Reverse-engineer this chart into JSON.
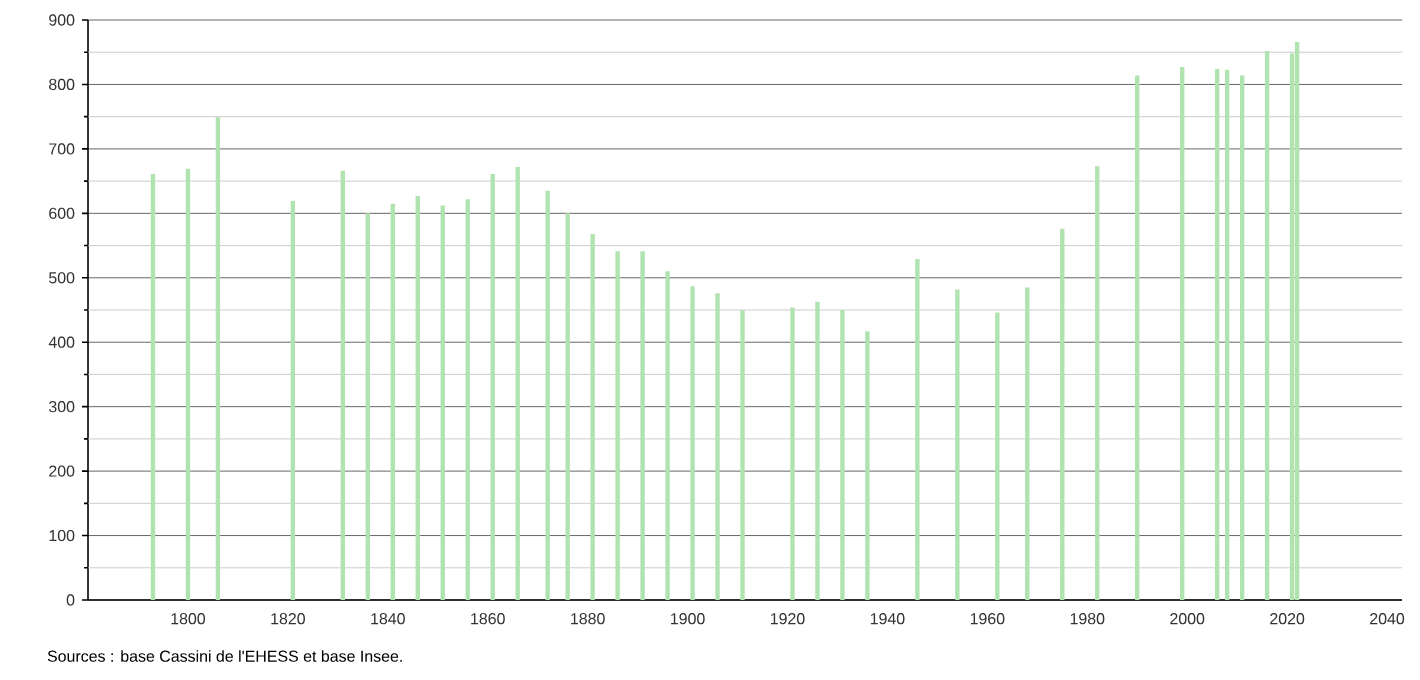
{
  "chart_data": {
    "type": "bar",
    "x": [
      1793,
      1800,
      1806,
      1821,
      1831,
      1836,
      1841,
      1846,
      1851,
      1856,
      1861,
      1866,
      1872,
      1876,
      1881,
      1886,
      1891,
      1896,
      1901,
      1906,
      1911,
      1921,
      1926,
      1931,
      1936,
      1946,
      1954,
      1962,
      1968,
      1975,
      1982,
      1990,
      1999,
      2006,
      2008,
      2011,
      2016,
      2021,
      2022
    ],
    "values": [
      661,
      669,
      749,
      619,
      666,
      600,
      615,
      627,
      612,
      622,
      661,
      672,
      635,
      600,
      568,
      541,
      541,
      510,
      487,
      476,
      450,
      454,
      463,
      450,
      417,
      529,
      482,
      446,
      485,
      576,
      673,
      814,
      827,
      824,
      823,
      814,
      852,
      848,
      866
    ],
    "color": "#b0e3b0",
    "xlim": [
      1780,
      2043
    ],
    "ylim": [
      0,
      900
    ],
    "xticks": [
      1800,
      1820,
      1840,
      1860,
      1880,
      1900,
      1920,
      1940,
      1960,
      1980,
      2000,
      2020,
      2040
    ],
    "yticks": [
      0,
      {
        "value": 50,
        "label": null
      },
      100,
      {
        "value": 150,
        "label": null
      },
      200,
      {
        "value": 250,
        "label": null
      },
      300,
      {
        "value": 350,
        "label": null
      },
      400,
      {
        "value": 450,
        "label": null
      },
      500,
      {
        "value": 550,
        "label": null
      },
      600,
      {
        "value": 650,
        "label": null
      },
      700,
      {
        "value": 750,
        "label": null
      },
      800,
      {
        "value": 850,
        "label": null
      },
      900
    ],
    "grid": "y",
    "annotations": [
      "Sources : base Cassini de l'EHESS et base Insee."
    ]
  }
}
